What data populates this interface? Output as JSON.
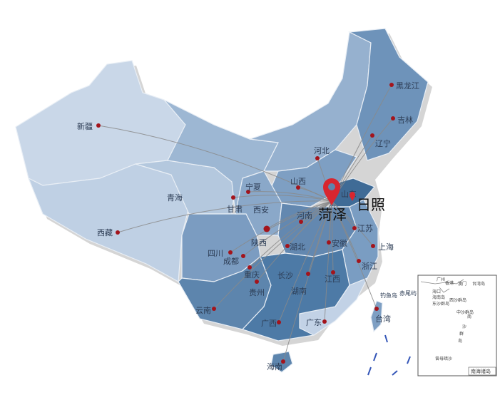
{
  "map": {
    "origin": "菏泽",
    "highlight": "日照",
    "colors": {
      "light": "#c9d7e8",
      "mid": "#8faccb",
      "dark": "#5d85ad",
      "darkest": "#3f6b96",
      "dot": "#a3141c",
      "pin": "#d8262f",
      "line": "#8a8a8a"
    },
    "provinces": [
      {
        "name": "新疆",
        "dot": true
      },
      {
        "name": "青海",
        "dot": true
      },
      {
        "name": "西藏",
        "dot": true
      },
      {
        "name": "甘肃",
        "dot": false
      },
      {
        "name": "宁夏",
        "dot": true
      },
      {
        "name": "西安",
        "dot": false
      },
      {
        "name": "陕西",
        "dot": true
      },
      {
        "name": "山西",
        "dot": true
      },
      {
        "name": "河北",
        "dot": true
      },
      {
        "name": "河南",
        "dot": true
      },
      {
        "name": "四川",
        "dot": true
      },
      {
        "name": "成都",
        "dot": true
      },
      {
        "name": "重庆",
        "dot": true
      },
      {
        "name": "贵州",
        "dot": true
      },
      {
        "name": "湖北",
        "dot": true
      },
      {
        "name": "长沙",
        "dot": true
      },
      {
        "name": "湖南",
        "dot": false
      },
      {
        "name": "江西",
        "dot": true
      },
      {
        "name": "安徽",
        "dot": true
      },
      {
        "name": "江苏",
        "dot": true
      },
      {
        "name": "上海",
        "dot": true
      },
      {
        "name": "浙江",
        "dot": true
      },
      {
        "name": "广西",
        "dot": true
      },
      {
        "name": "广东",
        "dot": true
      },
      {
        "name": "云南",
        "dot": true
      },
      {
        "name": "海南",
        "dot": true
      },
      {
        "name": "台湾",
        "dot": true
      },
      {
        "name": "辽宁",
        "dot": true
      },
      {
        "name": "吉林",
        "dot": true
      },
      {
        "name": "黑龙江",
        "dot": true
      },
      {
        "name": "山东",
        "dot": false
      }
    ],
    "islands": [
      "钓鱼岛",
      "赤尾屿"
    ],
    "inset": {
      "title": "南海诸岛",
      "labels": [
        "广州",
        "香港",
        "澳门",
        "台湾岛",
        "海口",
        "海南岛",
        "东沙群岛",
        "西沙群岛",
        "中沙群岛",
        "南",
        "沙",
        "群",
        "岛",
        "曾母暗沙"
      ]
    }
  }
}
